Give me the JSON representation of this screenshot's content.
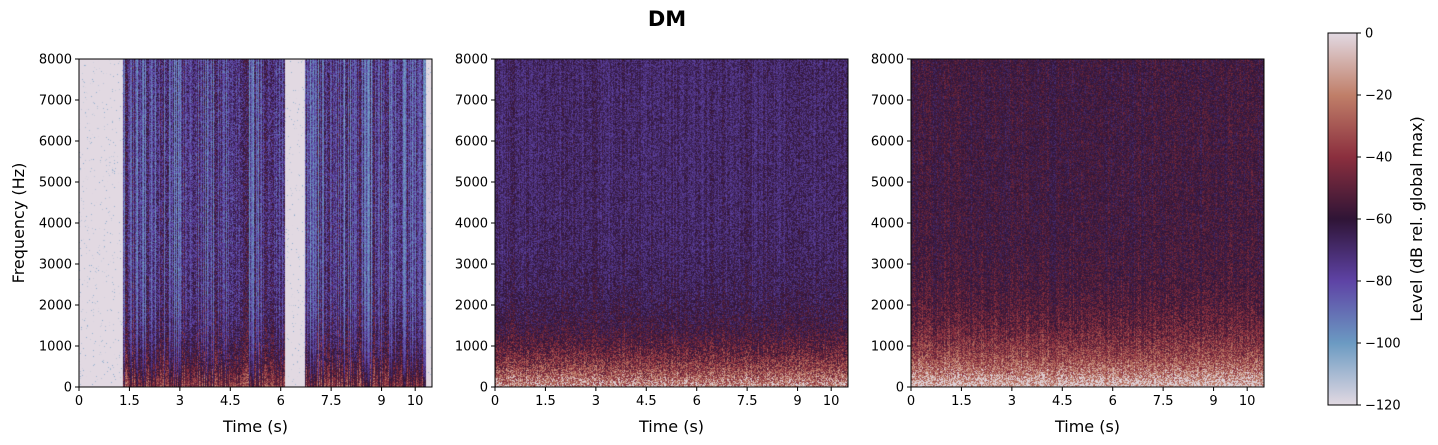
{
  "figure": {
    "title": "DM"
  },
  "chart_data": [
    {
      "type": "heatmap",
      "subtype": "spectrogram",
      "xlabel": "Time (s)",
      "ylabel": "Frequency (Hz)",
      "xlim": [
        0,
        10.5
      ],
      "ylim": [
        0,
        8000
      ],
      "xticks": [
        0,
        1.5,
        3,
        4.5,
        6,
        7.5,
        9,
        10
      ],
      "yticks": [
        0,
        1000,
        2000,
        3000,
        4000,
        5000,
        6000,
        7000,
        8000
      ],
      "grid": false,
      "description_level_db": {
        "silence": -120,
        "speech_bands": [
          -100,
          -60
        ]
      },
      "speech_segments_s": [
        [
          1.3,
          6.1
        ],
        [
          6.7,
          10.3
        ]
      ],
      "noise_floor_db": -120,
      "peak_level_db": -55
    },
    {
      "type": "heatmap",
      "subtype": "spectrogram",
      "xlabel": "Time (s)",
      "ylabel": "",
      "xlim": [
        0,
        10.5
      ],
      "ylim": [
        0,
        8000
      ],
      "xticks": [
        0,
        1.5,
        3,
        4.5,
        6,
        7.5,
        9,
        10
      ],
      "yticks": [
        0,
        1000,
        2000,
        3000,
        4000,
        5000,
        6000,
        7000,
        8000
      ],
      "grid": false,
      "noise_floor_db": -100,
      "peak_level_db": -40
    },
    {
      "type": "heatmap",
      "subtype": "spectrogram",
      "xlabel": "Time (s)",
      "ylabel": "",
      "xlim": [
        0,
        10.5
      ],
      "ylim": [
        0,
        8000
      ],
      "xticks": [
        0,
        1.5,
        3,
        4.5,
        6,
        7.5,
        9,
        10
      ],
      "yticks": [
        0,
        1000,
        2000,
        3000,
        4000,
        5000,
        6000,
        7000,
        8000
      ],
      "grid": false,
      "noise_floor_db": -90,
      "peak_level_db": -30
    }
  ],
  "colorbar": {
    "label": "Level (dB rel. global max)",
    "range": [
      -120,
      0
    ],
    "ticks": [
      0,
      -20,
      -40,
      -60,
      -80,
      -100,
      -120
    ],
    "colormap": "twilight",
    "stops": [
      {
        "value": -120,
        "color": "#e2d9e2"
      },
      {
        "value": -100,
        "color": "#6b9ac2"
      },
      {
        "value": -80,
        "color": "#5e43a5"
      },
      {
        "value": -60,
        "color": "#2f1436"
      },
      {
        "value": -40,
        "color": "#8b2f3e"
      },
      {
        "value": -20,
        "color": "#c07f69"
      },
      {
        "value": 0,
        "color": "#e2d9e2"
      }
    ]
  }
}
